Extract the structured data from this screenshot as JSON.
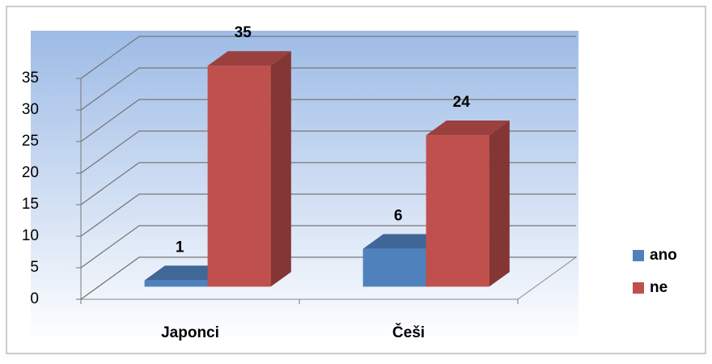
{
  "chart_data": {
    "type": "bar3d",
    "categories": [
      "Japonci",
      "Češi"
    ],
    "series": [
      {
        "name": "ano",
        "color": "#4f81bd",
        "values": [
          1,
          6
        ]
      },
      {
        "name": "ne",
        "color": "#c0504d",
        "values": [
          35,
          24
        ]
      }
    ],
    "ylim": [
      0,
      35
    ],
    "yticks": [
      0,
      5,
      10,
      15,
      20,
      25,
      30,
      35
    ],
    "grid": true,
    "legend": "right"
  }
}
